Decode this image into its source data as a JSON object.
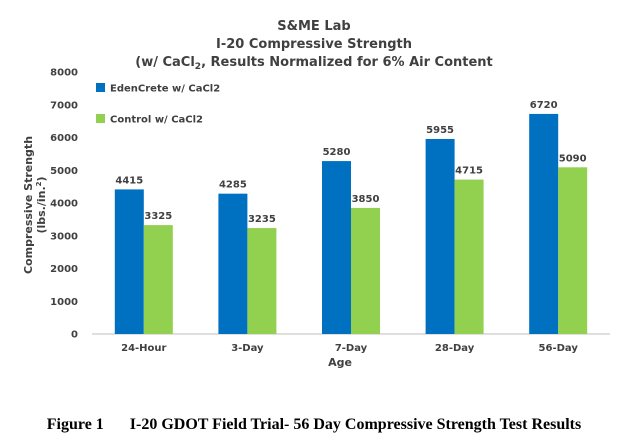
{
  "chart_data": {
    "type": "bar",
    "title_lines": [
      "S&ME Lab",
      "I-20 Compressive Strength"
    ],
    "subtitle_prefix": "(w/ CaCl",
    "subtitle_subscript": "2",
    "subtitle_suffix": ", Results Normalized for 6% Air Content",
    "categories": [
      "24-Hour",
      "3-Day",
      "7-Day",
      "28-Day",
      "56-Day"
    ],
    "series": [
      {
        "name": "EdenCrete w/ CaCl2",
        "color": "#0070C0",
        "values": [
          4415,
          4285,
          5280,
          5955,
          6720
        ]
      },
      {
        "name": "Control w/ CaCl2",
        "color": "#92D050",
        "values": [
          3325,
          3235,
          3850,
          4715,
          5090
        ]
      }
    ],
    "xlabel": "Age",
    "ylabel_line1": "Compressive Strength",
    "ylabel_line2_prefix": "(lbs./in.",
    "ylabel_line2_sup": "2",
    "ylabel_line2_suffix": ")",
    "ylim": [
      0,
      8000
    ],
    "yticks": [
      0,
      1000,
      2000,
      3000,
      4000,
      5000,
      6000,
      7000,
      8000
    ],
    "legend_position": "top-left",
    "grid": false
  },
  "caption": {
    "number": "Figure 1",
    "text": "I-20  GDOT Field Trial- 56 Day Compressive Strength Test Results"
  }
}
